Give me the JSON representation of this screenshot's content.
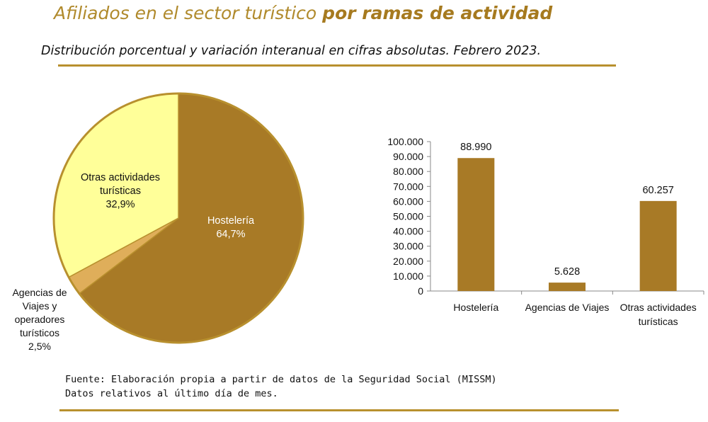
{
  "header": {
    "title_regular": "Afiliados en el sector turístico",
    "title_bold": "por ramas de actividad",
    "subtitle": "Distribución porcentual y variación interanual en cifras absolutas. Febrero 2023."
  },
  "footer": {
    "source": "Fuente: Elaboración propia a partir de datos de la Seguridad Social (MISSM)",
    "note": "Datos relativos al último día de mes."
  },
  "colors": {
    "accent_rule": "#b8902e",
    "hosteleria": "#a87a26",
    "agencias": "#dfae5a",
    "otras": "#ffff99",
    "bars": "#a87a26"
  },
  "chart_data": [
    {
      "type": "pie",
      "slices": [
        {
          "label": "Hostelería",
          "value": 64.7,
          "display": "64,7%",
          "color": "#a87a26"
        },
        {
          "label": "Agencias de Viajes y operadores turísticos",
          "value": 2.5,
          "display": "2,5%",
          "color": "#dfae5a"
        },
        {
          "label": "Otras actividades turísticas",
          "value": 32.9,
          "display": "32,9%",
          "color": "#ffff99"
        }
      ]
    },
    {
      "type": "bar",
      "categories": [
        "Hostelería",
        "Agencias de Viajes",
        "Otras actividades turísticas"
      ],
      "values": [
        88990,
        5628,
        60257
      ],
      "value_labels": [
        "88.990",
        "5.628",
        "60.257"
      ],
      "ylim": [
        0,
        100000
      ],
      "yticks": [
        "0",
        "10.000",
        "20.000",
        "30.000",
        "40.000",
        "50.000",
        "60.000",
        "70.000",
        "80.000",
        "90.000",
        "100.000"
      ],
      "grid": false,
      "color": "#a87a26"
    }
  ]
}
